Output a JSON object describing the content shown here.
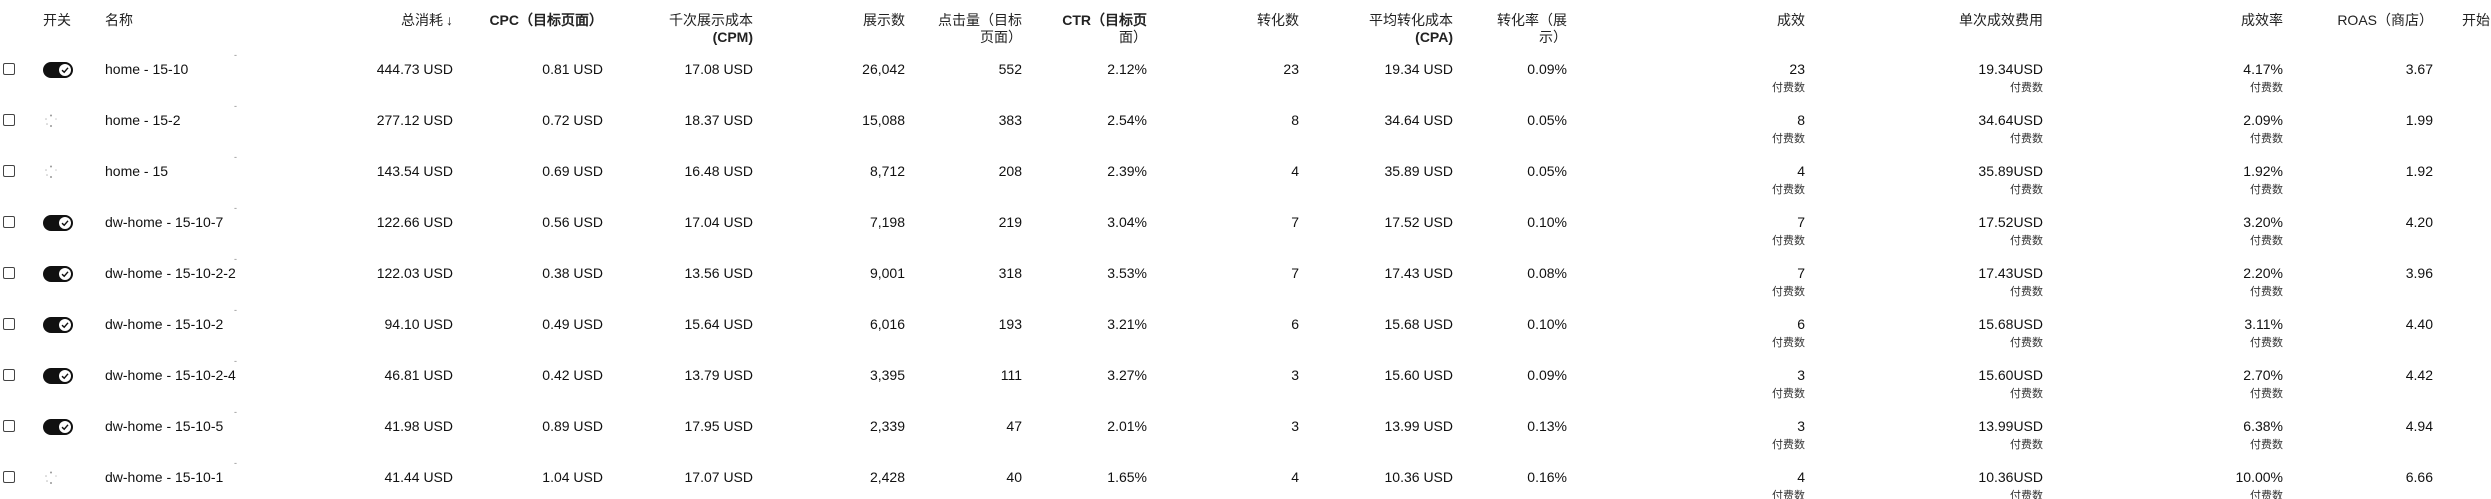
{
  "header": {
    "checkbox": "",
    "toggle": "开关",
    "name": "名称",
    "spend": "总消耗",
    "spend_sort": "↓",
    "cpc": "CPC（目标页面）",
    "cpm_line1": "千次展示成本",
    "cpm_line2": "(CPM)",
    "impressions": "展示数",
    "clicks_line1": "点击量（目标",
    "clicks_line2": "页面）",
    "ctr_line1": "CTR（目标页",
    "ctr_line2": "面）",
    "conversions": "转化数",
    "cpa_line1": "平均转化成本",
    "cpa_line2": "(CPA)",
    "cvr_line1": "转化率（展",
    "cvr_line2": "示）",
    "results": "成效",
    "cost_per_result": "单次成效费用",
    "result_rate": "成效率",
    "roas": "ROAS（商店）",
    "extra": "开始"
  },
  "result_unit": "付费数",
  "rows": [
    {
      "toggle": "on",
      "name": "home - 15-10",
      "spend": "444.73 USD",
      "cpc": "0.81 USD",
      "cpm": "17.08 USD",
      "impressions": "26,042",
      "clicks": "552",
      "ctr": "2.12%",
      "conversions": "23",
      "cpa": "19.34 USD",
      "cvr": "0.09%",
      "results": "23",
      "cost_per_result": "19.34USD",
      "result_rate": "4.17%",
      "roas": "3.67"
    },
    {
      "toggle": "loading",
      "name": "home - 15-2",
      "spend": "277.12 USD",
      "cpc": "0.72 USD",
      "cpm": "18.37 USD",
      "impressions": "15,088",
      "clicks": "383",
      "ctr": "2.54%",
      "conversions": "8",
      "cpa": "34.64 USD",
      "cvr": "0.05%",
      "results": "8",
      "cost_per_result": "34.64USD",
      "result_rate": "2.09%",
      "roas": "1.99"
    },
    {
      "toggle": "loading",
      "name": "home - 15",
      "spend": "143.54 USD",
      "cpc": "0.69 USD",
      "cpm": "16.48 USD",
      "impressions": "8,712",
      "clicks": "208",
      "ctr": "2.39%",
      "conversions": "4",
      "cpa": "35.89 USD",
      "cvr": "0.05%",
      "results": "4",
      "cost_per_result": "35.89USD",
      "result_rate": "1.92%",
      "roas": "1.92"
    },
    {
      "toggle": "on",
      "name": "dw-home - 15-10-7",
      "spend": "122.66 USD",
      "cpc": "0.56 USD",
      "cpm": "17.04 USD",
      "impressions": "7,198",
      "clicks": "219",
      "ctr": "3.04%",
      "conversions": "7",
      "cpa": "17.52 USD",
      "cvr": "0.10%",
      "results": "7",
      "cost_per_result": "17.52USD",
      "result_rate": "3.20%",
      "roas": "4.20"
    },
    {
      "toggle": "on",
      "name": "dw-home - 15-10-2-2",
      "spend": "122.03 USD",
      "cpc": "0.38 USD",
      "cpm": "13.56 USD",
      "impressions": "9,001",
      "clicks": "318",
      "ctr": "3.53%",
      "conversions": "7",
      "cpa": "17.43 USD",
      "cvr": "0.08%",
      "results": "7",
      "cost_per_result": "17.43USD",
      "result_rate": "2.20%",
      "roas": "3.96"
    },
    {
      "toggle": "on",
      "name": "dw-home - 15-10-2",
      "spend": "94.10 USD",
      "cpc": "0.49 USD",
      "cpm": "15.64 USD",
      "impressions": "6,016",
      "clicks": "193",
      "ctr": "3.21%",
      "conversions": "6",
      "cpa": "15.68 USD",
      "cvr": "0.10%",
      "results": "6",
      "cost_per_result": "15.68USD",
      "result_rate": "3.11%",
      "roas": "4.40"
    },
    {
      "toggle": "on",
      "name": "dw-home - 15-10-2-4",
      "spend": "46.81 USD",
      "cpc": "0.42 USD",
      "cpm": "13.79 USD",
      "impressions": "3,395",
      "clicks": "111",
      "ctr": "3.27%",
      "conversions": "3",
      "cpa": "15.60 USD",
      "cvr": "0.09%",
      "results": "3",
      "cost_per_result": "15.60USD",
      "result_rate": "2.70%",
      "roas": "4.42"
    },
    {
      "toggle": "on",
      "name": "dw-home - 15-10-5",
      "spend": "41.98 USD",
      "cpc": "0.89 USD",
      "cpm": "17.95 USD",
      "impressions": "2,339",
      "clicks": "47",
      "ctr": "2.01%",
      "conversions": "3",
      "cpa": "13.99 USD",
      "cvr": "0.13%",
      "results": "3",
      "cost_per_result": "13.99USD",
      "result_rate": "6.38%",
      "roas": "4.94"
    },
    {
      "toggle": "loading",
      "name": "dw-home - 15-10-1",
      "spend": "41.44 USD",
      "cpc": "1.04 USD",
      "cpm": "17.07 USD",
      "impressions": "2,428",
      "clicks": "40",
      "ctr": "1.65%",
      "conversions": "4",
      "cpa": "10.36 USD",
      "cvr": "0.16%",
      "results": "4",
      "cost_per_result": "10.36USD",
      "result_rate": "10.00%",
      "roas": "6.66"
    }
  ],
  "colors": {
    "toggle_on": "#111111",
    "text": "#111111",
    "muted": "#333333"
  }
}
